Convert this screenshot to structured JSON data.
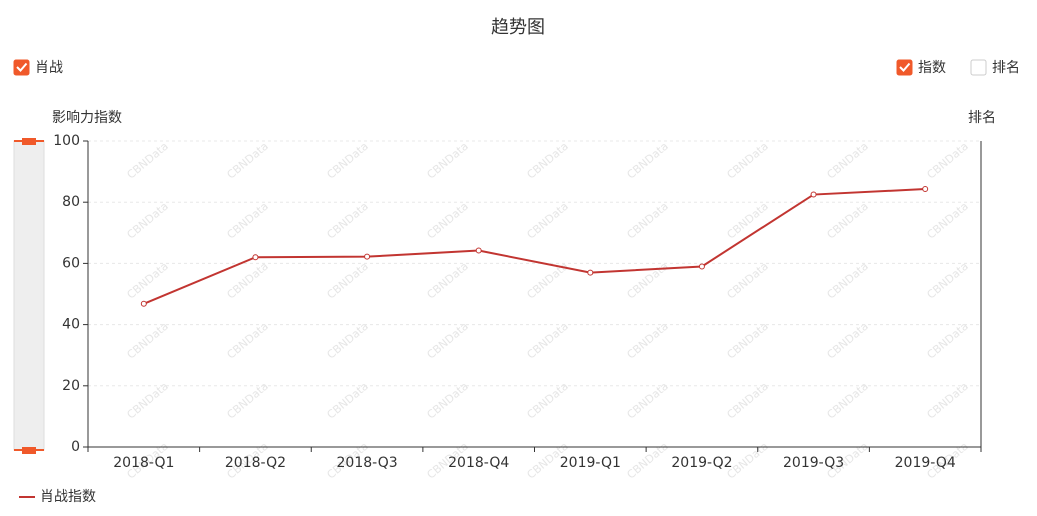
{
  "chart_data": {
    "type": "line",
    "title": "趋势图",
    "toggles": [
      {
        "label": "肖战",
        "checked": true
      },
      {
        "label": "指数",
        "checked": true
      },
      {
        "label": "排名",
        "checked": false
      }
    ],
    "y_label": "影响力指数",
    "y2_label": "排名",
    "watermark": "CBNData",
    "categories": [
      "2018-Q1",
      "2018-Q2",
      "2018-Q3",
      "2018-Q4",
      "2019-Q1",
      "2019-Q2",
      "2019-Q3",
      "2019-Q4"
    ],
    "series": [
      {
        "name": "肖战指数",
        "color": "#c23531",
        "values": [
          46.8,
          62.0,
          62.2,
          64.2,
          57.0,
          59.0,
          82.5,
          84.3
        ]
      }
    ],
    "ylim": [
      0,
      100
    ],
    "yticks": [
      0,
      20,
      40,
      60,
      80,
      100
    ],
    "grid": true,
    "accent": "#f0592a"
  }
}
